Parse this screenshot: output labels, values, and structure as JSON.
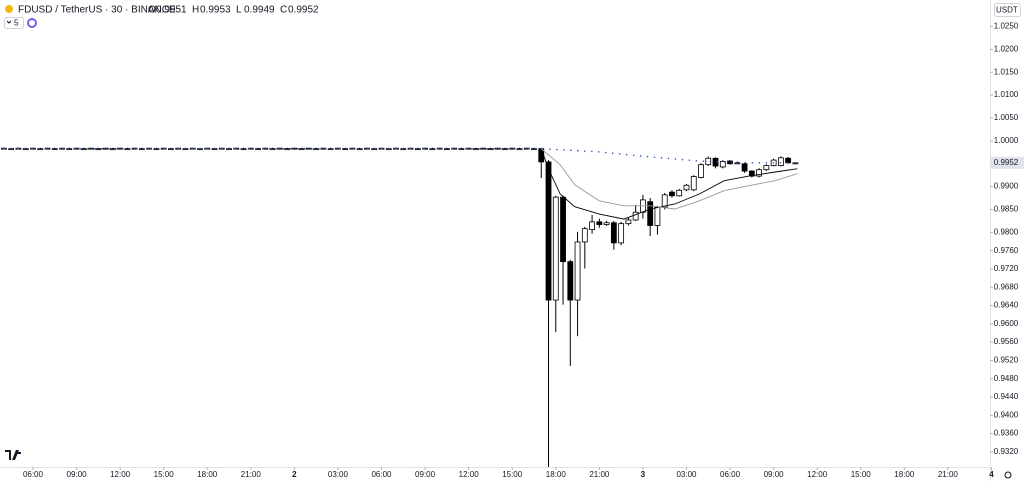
{
  "chart_data": {
    "type": "candlestick",
    "title": "FDUSD / TetherUS · 30 · BINANCE",
    "legend": [
      {
        "label": "O",
        "value": 0.9951
      },
      {
        "label": "H",
        "value": 0.9953
      },
      {
        "label": "L",
        "value": 0.9949
      },
      {
        "label": "C",
        "value": 0.9952
      }
    ],
    "indicator_count": 5,
    "currency": "USDT",
    "last_price": {
      "value": 0.9952,
      "label": "0.9952"
    },
    "up_color": "#ffffff",
    "down_color": "#000000",
    "border_color": "#000000",
    "xlim": [
      3.73,
      71.9
    ],
    "ylim": [
      0.9287,
      1.0308
    ],
    "xticks": [
      {
        "value": 6,
        "label": "06:00"
      },
      {
        "value": 9,
        "label": "09:00"
      },
      {
        "value": 12,
        "label": "12:00"
      },
      {
        "value": 15,
        "label": "15:00"
      },
      {
        "value": 18,
        "label": "18:00"
      },
      {
        "value": 21,
        "label": "21:00"
      },
      {
        "value": 24,
        "label": "2"
      },
      {
        "value": 27,
        "label": "03:00"
      },
      {
        "value": 30,
        "label": "06:00"
      },
      {
        "value": 33,
        "label": "09:00"
      },
      {
        "value": 36,
        "label": "12:00"
      },
      {
        "value": 39,
        "label": "15:00"
      },
      {
        "value": 42,
        "label": "18:00"
      },
      {
        "value": 45,
        "label": "21:00"
      },
      {
        "value": 48,
        "label": "3"
      },
      {
        "value": 51,
        "label": "03:00"
      },
      {
        "value": 54,
        "label": "06:00"
      },
      {
        "value": 57,
        "label": "09:00"
      },
      {
        "value": 60,
        "label": "12:00"
      },
      {
        "value": 63,
        "label": "15:00"
      },
      {
        "value": 66,
        "label": "18:00"
      },
      {
        "value": 69,
        "label": "21:00"
      },
      {
        "value": 72,
        "label": "4"
      }
    ],
    "yticks": [
      {
        "value": 1.025,
        "label": "1.0250"
      },
      {
        "value": 1.02,
        "label": "1.0200"
      },
      {
        "value": 1.015,
        "label": "1.0150"
      },
      {
        "value": 1.01,
        "label": "1.0100"
      },
      {
        "value": 1.005,
        "label": "1.0050"
      },
      {
        "value": 1.0,
        "label": "1.0000"
      },
      {
        "value": 0.99,
        "label": "0.9900"
      },
      {
        "value": 0.985,
        "label": "0.9850"
      },
      {
        "value": 0.98,
        "label": "0.9800"
      },
      {
        "value": 0.976,
        "label": "0.9760"
      },
      {
        "value": 0.972,
        "label": "0.9720"
      },
      {
        "value": 0.968,
        "label": "0.9680"
      },
      {
        "value": 0.964,
        "label": "0.9640"
      },
      {
        "value": 0.96,
        "label": "0.9600"
      },
      {
        "value": 0.956,
        "label": "0.9560"
      },
      {
        "value": 0.952,
        "label": "0.9520"
      },
      {
        "value": 0.948,
        "label": "0.9480"
      },
      {
        "value": 0.944,
        "label": "0.9440"
      },
      {
        "value": 0.94,
        "label": "0.9400"
      },
      {
        "value": 0.936,
        "label": "0.9360"
      },
      {
        "value": 0.932,
        "label": "0.9320"
      }
    ],
    "x": [
      4,
      4.5,
      5,
      5.5,
      6,
      6.5,
      7,
      7.5,
      8,
      8.5,
      9,
      9.5,
      10,
      10.5,
      11,
      11.5,
      12,
      12.5,
      13,
      13.5,
      14,
      14.5,
      15,
      15.5,
      16,
      16.5,
      17,
      17.5,
      18,
      18.5,
      19,
      19.5,
      20,
      20.5,
      21,
      21.5,
      22,
      22.5,
      23,
      23.5,
      24,
      24.5,
      25,
      25.5,
      26,
      26.5,
      27,
      27.5,
      28,
      28.5,
      29,
      29.5,
      30,
      30.5,
      31,
      31.5,
      32,
      32.5,
      33,
      33.5,
      34,
      34.5,
      35,
      35.5,
      36,
      36.5,
      37,
      37.5,
      38,
      38.5,
      39,
      39.5,
      40,
      40.5,
      41,
      41.5,
      42,
      42.5,
      43,
      43.5,
      44,
      44.5,
      45,
      45.5,
      46,
      46.5,
      47,
      47.5,
      48,
      48.5,
      49,
      49.5,
      50,
      50.5,
      51,
      51.5,
      52,
      52.5,
      53,
      53.5,
      54,
      54.5,
      55,
      55.5,
      56,
      56.5,
      57,
      57.5,
      58,
      58.5
    ],
    "open": [
      0.9983,
      0.9983,
      0.9983,
      0.9983,
      0.9983,
      0.9983,
      0.9983,
      0.9983,
      0.9983,
      0.9983,
      0.9983,
      0.9983,
      0.9983,
      0.9983,
      0.9983,
      0.9983,
      0.9983,
      0.9983,
      0.9983,
      0.9983,
      0.9983,
      0.9983,
      0.9983,
      0.9983,
      0.9983,
      0.9983,
      0.9983,
      0.9983,
      0.9983,
      0.9983,
      0.9983,
      0.9983,
      0.9983,
      0.9983,
      0.9983,
      0.9983,
      0.9983,
      0.9983,
      0.9983,
      0.9983,
      0.9983,
      0.9983,
      0.9983,
      0.9983,
      0.9983,
      0.9983,
      0.9983,
      0.9983,
      0.9983,
      0.9983,
      0.9983,
      0.9983,
      0.9983,
      0.9983,
      0.9983,
      0.9983,
      0.9983,
      0.9983,
      0.9983,
      0.9983,
      0.9983,
      0.9983,
      0.9983,
      0.9983,
      0.9983,
      0.9983,
      0.9983,
      0.9983,
      0.9983,
      0.9983,
      0.9983,
      0.9983,
      0.9983,
      0.9983,
      0.9983,
      0.9954,
      0.9652,
      0.9877,
      0.9736,
      0.9652,
      0.9779,
      0.9806,
      0.9823,
      0.9817,
      0.9821,
      0.9777,
      0.9819,
      0.9827,
      0.9844,
      0.9867,
      0.9815,
      0.9855,
      0.9888,
      0.988,
      0.9893,
      0.9893,
      0.992,
      0.9948,
      0.9962,
      0.9943,
      0.9956,
      0.995,
      0.995,
      0.9934,
      0.9923,
      0.9937,
      0.9946,
      0.9946,
      0.9962,
      0.9951
    ],
    "high": [
      0.9985,
      0.9985,
      0.9985,
      0.9985,
      0.9985,
      0.9985,
      0.9985,
      0.9985,
      0.9985,
      0.9985,
      0.9985,
      0.9985,
      0.9985,
      0.9985,
      0.9985,
      0.9985,
      0.9985,
      0.9985,
      0.9985,
      0.9985,
      0.9985,
      0.9985,
      0.9985,
      0.9985,
      0.9985,
      0.9985,
      0.9985,
      0.9985,
      0.9985,
      0.9985,
      0.9985,
      0.9985,
      0.9985,
      0.9985,
      0.9985,
      0.9985,
      0.9985,
      0.9985,
      0.9985,
      0.9985,
      0.9985,
      0.9985,
      0.9985,
      0.9985,
      0.9985,
      0.9985,
      0.9985,
      0.9985,
      0.9985,
      0.9985,
      0.9985,
      0.9985,
      0.9985,
      0.9985,
      0.9985,
      0.9985,
      0.9985,
      0.9985,
      0.9985,
      0.9985,
      0.9985,
      0.9985,
      0.9985,
      0.9985,
      0.9985,
      0.9985,
      0.9985,
      0.9985,
      0.9985,
      0.9985,
      0.9985,
      0.9985,
      0.9985,
      0.9985,
      0.9985,
      0.9958,
      0.988,
      0.988,
      0.974,
      0.9801,
      0.9812,
      0.9838,
      0.983,
      0.9825,
      0.9825,
      0.9823,
      0.9832,
      0.986,
      0.9882,
      0.9875,
      0.9858,
      0.9886,
      0.9892,
      0.9895,
      0.9906,
      0.9925,
      0.9951,
      0.9966,
      0.9964,
      0.9958,
      0.9958,
      0.9955,
      0.9952,
      0.9936,
      0.994,
      0.9949,
      0.9961,
      0.9966,
      0.9965,
      0.9953
    ],
    "low": [
      0.9982,
      0.9982,
      0.9982,
      0.9982,
      0.9982,
      0.9982,
      0.9982,
      0.9982,
      0.9982,
      0.9982,
      0.9982,
      0.9982,
      0.9982,
      0.9982,
      0.9982,
      0.9982,
      0.9982,
      0.9982,
      0.9982,
      0.9982,
      0.9982,
      0.9982,
      0.9982,
      0.9982,
      0.9982,
      0.9982,
      0.9982,
      0.9982,
      0.9982,
      0.9982,
      0.9982,
      0.9982,
      0.9982,
      0.9982,
      0.9982,
      0.9982,
      0.9982,
      0.9982,
      0.9982,
      0.9982,
      0.9982,
      0.9982,
      0.9982,
      0.9982,
      0.9982,
      0.9982,
      0.9982,
      0.9982,
      0.9982,
      0.9982,
      0.9982,
      0.9982,
      0.9982,
      0.9982,
      0.9982,
      0.9982,
      0.9982,
      0.9982,
      0.9982,
      0.9982,
      0.9982,
      0.9982,
      0.9982,
      0.9982,
      0.9982,
      0.9982,
      0.9982,
      0.9982,
      0.9982,
      0.9982,
      0.9982,
      0.9982,
      0.9982,
      0.9982,
      0.9919,
      0.9287,
      0.9582,
      0.9642,
      0.9508,
      0.9573,
      0.9721,
      0.9797,
      0.981,
      0.9814,
      0.9762,
      0.9772,
      0.9815,
      0.9825,
      0.983,
      0.9792,
      0.9795,
      0.985,
      0.9876,
      0.9878,
      0.989,
      0.989,
      0.9918,
      0.9945,
      0.994,
      0.994,
      0.9948,
      0.9949,
      0.993,
      0.992,
      0.992,
      0.9934,
      0.9944,
      0.9944,
      0.995,
      0.9949
    ],
    "close": [
      0.9984,
      0.9983,
      0.9984,
      0.9983,
      0.9984,
      0.9983,
      0.9984,
      0.9983,
      0.9984,
      0.9983,
      0.9984,
      0.9983,
      0.9984,
      0.9983,
      0.9984,
      0.9983,
      0.9984,
      0.9983,
      0.9984,
      0.9983,
      0.9984,
      0.9983,
      0.9984,
      0.9983,
      0.9984,
      0.9983,
      0.9984,
      0.9983,
      0.9984,
      0.9983,
      0.9984,
      0.9983,
      0.9984,
      0.9983,
      0.9984,
      0.9983,
      0.9984,
      0.9983,
      0.9984,
      0.9983,
      0.9984,
      0.9983,
      0.9984,
      0.9983,
      0.9984,
      0.9983,
      0.9984,
      0.9983,
      0.9984,
      0.9983,
      0.9984,
      0.9983,
      0.9984,
      0.9983,
      0.9984,
      0.9983,
      0.9984,
      0.9983,
      0.9984,
      0.9983,
      0.9984,
      0.9983,
      0.9984,
      0.9983,
      0.9984,
      0.9983,
      0.9984,
      0.9983,
      0.9984,
      0.9983,
      0.9984,
      0.9983,
      0.9984,
      0.9983,
      0.9954,
      0.9652,
      0.9877,
      0.9736,
      0.9652,
      0.9779,
      0.9808,
      0.9823,
      0.9817,
      0.9821,
      0.9777,
      0.9819,
      0.9827,
      0.9844,
      0.9871,
      0.9815,
      0.9855,
      0.9882,
      0.988,
      0.9892,
      0.9903,
      0.9922,
      0.9948,
      0.9962,
      0.9945,
      0.9955,
      0.995,
      0.9952,
      0.9934,
      0.9923,
      0.9937,
      0.9946,
      0.9958,
      0.9963,
      0.9952,
      0.9952
    ],
    "lines": [
      {
        "color": "#000000",
        "dash": false,
        "x": [
          41,
          41.5,
          42.3,
          43.3,
          45,
          46.7,
          48.5,
          50.2,
          51.9,
          53.6,
          55.3,
          57.1,
          58.6
        ],
        "values": [
          0.99825,
          0.9939,
          0.9884,
          0.9856,
          0.984,
          0.9829,
          0.9851,
          0.9862,
          0.9884,
          0.9913,
          0.9923,
          0.9932,
          0.9939
        ]
      },
      {
        "color": "#9a9a9a",
        "dash": false,
        "x": [
          41,
          42.3,
          43.3,
          45,
          46.7,
          48.5,
          50.2,
          51.9,
          53.6,
          55.3,
          57.1,
          58.6
        ],
        "values": [
          0.99825,
          0.9948,
          0.9904,
          0.9869,
          0.9858,
          0.9858,
          0.9851,
          0.9869,
          0.9891,
          0.9902,
          0.9913,
          0.9928
        ]
      },
      {
        "color": "#2f55b4",
        "dash": true,
        "x": [
          4,
          41,
          45,
          48.5,
          51.9,
          55.3,
          58.6
        ],
        "values": [
          0.9983,
          0.9983,
          0.9976,
          0.9965,
          0.9956,
          0.9952,
          0.9952
        ]
      }
    ]
  }
}
